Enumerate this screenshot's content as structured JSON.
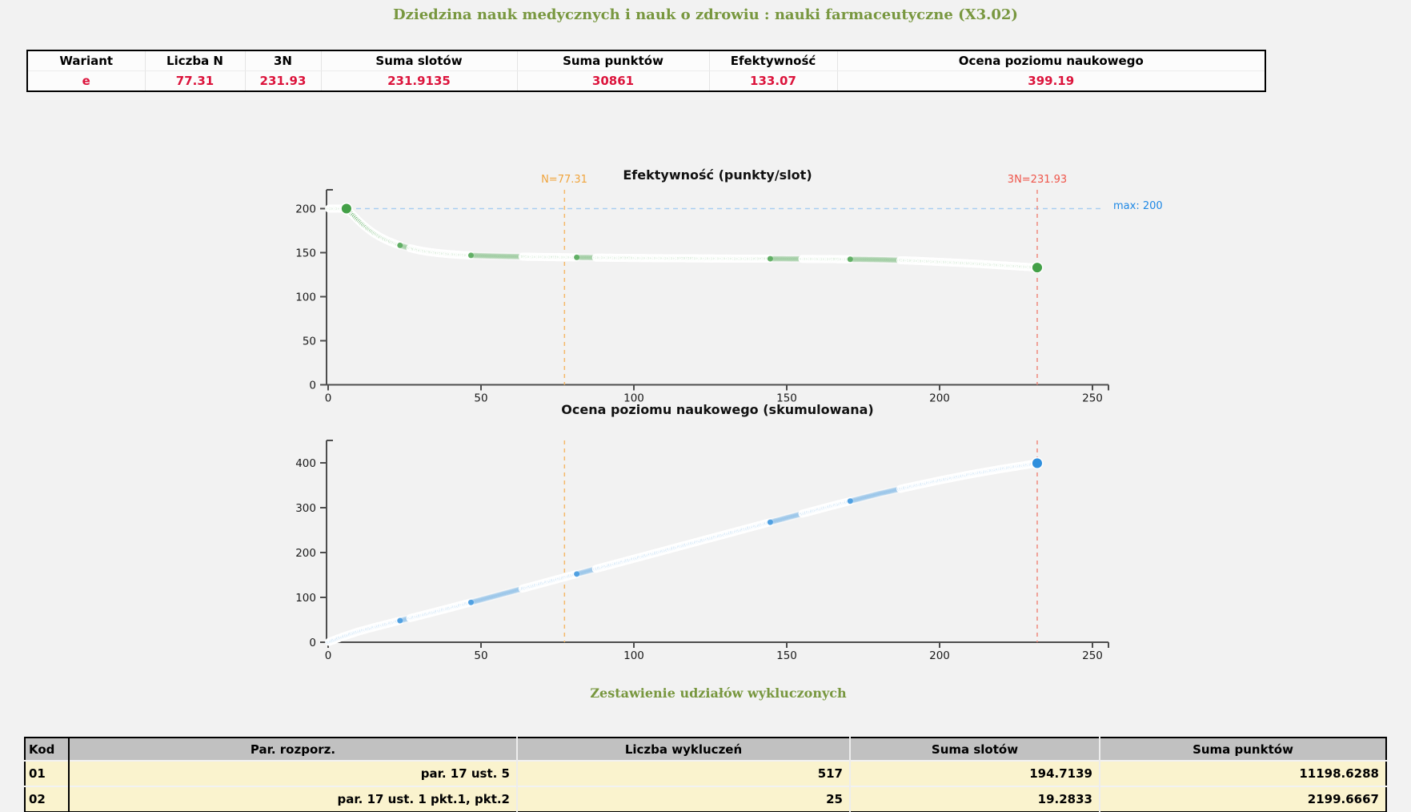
{
  "page": {
    "title": "Dziedzina nauk medycznych i nauk o zdrowiu : nauki farmaceutyczne (X3.02)",
    "title_color": "#78973f",
    "background": "#f2f2f2"
  },
  "summary_table": {
    "headers": [
      "Wariant",
      "Liczba N",
      "3N",
      "Suma slotów",
      "Suma punktów",
      "Efektywność",
      "Ocena poziomu naukowego"
    ],
    "values": [
      "e",
      "77.31",
      "231.93",
      "231.9135",
      "30861",
      "133.07",
      "399.19"
    ],
    "value_color": "#dc143c"
  },
  "chart_data": [
    {
      "type": "scatter",
      "title": "Efektywność (punkty/slot)",
      "xlabel": "",
      "ylabel": "",
      "xlim": [
        0,
        255
      ],
      "ylim": [
        0,
        220
      ],
      "x_ticks": [
        0,
        50,
        100,
        150,
        200,
        250
      ],
      "y_ticks": [
        0,
        50,
        100,
        150,
        200
      ],
      "marker_color": "#43a047",
      "annotations": {
        "n_line": {
          "x": 77.31,
          "label": "N=77.31",
          "label_color": "#f0a43c",
          "line_color": "#f5b96a"
        },
        "n3_line": {
          "x": 231.93,
          "label": "3N=231.93",
          "label_color": "#ef554a",
          "line_color": "#f0897d"
        },
        "max_line": {
          "y": 200,
          "label": "max: 200",
          "label_color": "#1e88e5",
          "line_color": "#a8cdf0"
        }
      },
      "points_curve": [
        [
          0.31,
          200
        ],
        [
          3,
          200
        ],
        [
          6,
          200
        ],
        [
          7,
          196.5
        ],
        [
          8,
          193
        ],
        [
          9,
          189.5
        ],
        [
          10,
          186
        ],
        [
          11,
          182.8
        ],
        [
          12,
          179.8
        ],
        [
          13,
          177
        ],
        [
          14,
          174.4
        ],
        [
          15,
          172
        ],
        [
          16,
          169.8
        ],
        [
          17,
          167.8
        ],
        [
          18,
          166
        ],
        [
          19,
          164.3
        ],
        [
          20,
          162.8
        ],
        [
          22,
          160
        ],
        [
          24,
          157.7
        ],
        [
          26,
          155.7
        ],
        [
          28,
          154
        ],
        [
          30,
          152.5
        ],
        [
          33,
          150.8
        ],
        [
          36,
          149.5
        ],
        [
          40,
          148.2
        ],
        [
          44,
          147.3
        ],
        [
          48,
          146.7
        ],
        [
          53,
          146.2
        ],
        [
          58,
          145.8
        ],
        [
          64,
          145.4
        ],
        [
          70,
          145.1
        ],
        [
          77.31,
          144.8
        ],
        [
          85,
          144.5
        ],
        [
          95,
          144.1
        ],
        [
          105,
          143.8
        ],
        [
          115,
          143.6
        ],
        [
          125,
          143.4
        ],
        [
          135,
          143.2
        ],
        [
          145,
          143.1
        ],
        [
          155,
          142.9
        ],
        [
          165,
          142.7
        ],
        [
          175,
          142.3
        ],
        [
          182,
          141.9
        ],
        [
          188,
          141.3
        ],
        [
          194,
          140.5
        ],
        [
          200,
          139.5
        ],
        [
          206,
          138.5
        ],
        [
          212,
          137.4
        ],
        [
          218,
          136.1
        ],
        [
          223,
          135
        ],
        [
          227,
          134.1
        ],
        [
          230,
          133.5
        ],
        [
          231.93,
          133.07
        ]
      ],
      "big_points": [
        [
          6,
          200
        ],
        [
          231.93,
          133.07
        ]
      ],
      "x_range": [
        0.31,
        231.93
      ],
      "n_points": 550
    },
    {
      "type": "scatter",
      "title": "Ocena poziomu naukowego (skumulowana)",
      "xlabel": "",
      "ylabel": "",
      "xlim": [
        0,
        255
      ],
      "ylim": [
        0,
        440
      ],
      "x_ticks": [
        0,
        50,
        100,
        150,
        200,
        250
      ],
      "y_ticks": [
        0,
        100,
        200,
        300,
        400
      ],
      "marker_color": "#2f8fdd",
      "annotations": {
        "n_line": {
          "x": 77.31,
          "label": "",
          "line_color": "#f5b96a"
        },
        "n3_line": {
          "x": 231.93,
          "label": "",
          "line_color": "#f0897d"
        }
      },
      "points_curve": [
        [
          0.31,
          0.8
        ],
        [
          5,
          12.93
        ],
        [
          10,
          24.06
        ],
        [
          15,
          33.37
        ],
        [
          20,
          42.12
        ],
        [
          25,
          50.67
        ],
        [
          30,
          59.18
        ],
        [
          40,
          76.68
        ],
        [
          50,
          94.72
        ],
        [
          60,
          113.0
        ],
        [
          70,
          131.38
        ],
        [
          77.31,
          144.8
        ],
        [
          90,
          168.0
        ],
        [
          105,
          195.3
        ],
        [
          120,
          222.73
        ],
        [
          135,
          250.06
        ],
        [
          150,
          277.45
        ],
        [
          165,
          304.6
        ],
        [
          180,
          330.87
        ],
        [
          190,
          346.3
        ],
        [
          200,
          360.9
        ],
        [
          210,
          374.3
        ],
        [
          220,
          386.2
        ],
        [
          226,
          392.7
        ],
        [
          231.93,
          399.19
        ]
      ],
      "big_points": [
        [
          231.93,
          399.19
        ]
      ],
      "x_range": [
        0.31,
        231.93
      ],
      "n_points": 550
    }
  ],
  "exclusions": {
    "title": "Zestawienie udziałów wykluczonych",
    "headers": [
      "Kod",
      "Par. rozporz.",
      "Liczba wykluczeń",
      "Suma slotów",
      "Suma punktów"
    ],
    "rows": [
      [
        "01",
        "par. 17 ust. 5",
        "517",
        "194.7139",
        "11198.6288"
      ],
      [
        "02",
        "par. 17 ust. 1 pkt.1, pkt.2",
        "25",
        "19.2833",
        "2199.6667"
      ]
    ]
  }
}
